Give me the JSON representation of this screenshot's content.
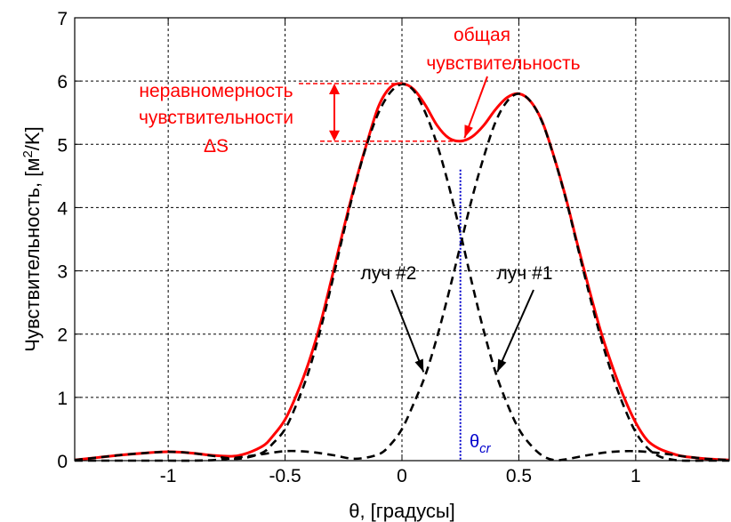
{
  "chart_data": {
    "type": "line",
    "xlabel": "θ, [градусы]",
    "ylabel_main": "Чувствительность, [м",
    "ylabel_sup": "2",
    "ylabel_tail": "/K]",
    "xlim": [
      -1.4,
      1.4
    ],
    "ylim": [
      0,
      7
    ],
    "x_ticks": [
      -1,
      -0.5,
      0,
      0.5,
      1
    ],
    "x_tick_labels": [
      "-1",
      "-0.5",
      "0",
      "0.5",
      "1"
    ],
    "y_ticks": [
      0,
      1,
      2,
      3,
      4,
      5,
      6,
      7
    ],
    "y_tick_labels": [
      "0",
      "1",
      "2",
      "3",
      "4",
      "5",
      "6",
      "7"
    ],
    "grid": true,
    "series": [
      {
        "label": "луч #2",
        "color": "#000000",
        "style": "dashed",
        "points": [
          [
            -1.4,
            0.01
          ],
          [
            -1.3,
            0.05
          ],
          [
            -1.2,
            0.09
          ],
          [
            -1.1,
            0.12
          ],
          [
            -1.0,
            0.14
          ],
          [
            -0.9,
            0.12
          ],
          [
            -0.8,
            0.07
          ],
          [
            -0.7,
            0.03
          ],
          [
            -0.6,
            0.12
          ],
          [
            -0.55,
            0.28
          ],
          [
            -0.5,
            0.5
          ],
          [
            -0.45,
            0.9
          ],
          [
            -0.4,
            1.4
          ],
          [
            -0.35,
            2.05
          ],
          [
            -0.3,
            2.8
          ],
          [
            -0.25,
            3.6
          ],
          [
            -0.2,
            4.35
          ],
          [
            -0.15,
            5.0
          ],
          [
            -0.1,
            5.5
          ],
          [
            -0.05,
            5.82
          ],
          [
            0.0,
            5.95
          ],
          [
            0.05,
            5.85
          ],
          [
            0.1,
            5.5
          ],
          [
            0.15,
            5.0
          ],
          [
            0.2,
            4.35
          ],
          [
            0.25,
            3.6
          ],
          [
            0.3,
            2.8
          ],
          [
            0.35,
            2.05
          ],
          [
            0.4,
            1.4
          ],
          [
            0.45,
            0.9
          ],
          [
            0.5,
            0.5
          ],
          [
            0.55,
            0.25
          ],
          [
            0.6,
            0.08
          ],
          [
            0.65,
            0.01
          ],
          [
            0.7,
            0.02
          ],
          [
            0.8,
            0.09
          ],
          [
            0.9,
            0.14
          ],
          [
            1.0,
            0.15
          ],
          [
            1.1,
            0.12
          ],
          [
            1.2,
            0.07
          ],
          [
            1.3,
            0.03
          ],
          [
            1.4,
            0.01
          ]
        ]
      },
      {
        "label": "луч #1",
        "color": "#000000",
        "style": "dashed",
        "points": [
          [
            -1.4,
            0.0
          ],
          [
            -1.3,
            0.0
          ],
          [
            -1.2,
            0.0
          ],
          [
            -1.1,
            0.0
          ],
          [
            -1.0,
            0.0
          ],
          [
            -0.9,
            0.0
          ],
          [
            -0.8,
            0.01
          ],
          [
            -0.7,
            0.05
          ],
          [
            -0.6,
            0.1
          ],
          [
            -0.5,
            0.15
          ],
          [
            -0.4,
            0.14
          ],
          [
            -0.3,
            0.09
          ],
          [
            -0.2,
            0.03
          ],
          [
            -0.1,
            0.1
          ],
          [
            -0.05,
            0.25
          ],
          [
            0.0,
            0.5
          ],
          [
            0.05,
            0.9
          ],
          [
            0.1,
            1.35
          ],
          [
            0.15,
            1.95
          ],
          [
            0.2,
            2.65
          ],
          [
            0.25,
            3.4
          ],
          [
            0.3,
            4.15
          ],
          [
            0.35,
            4.8
          ],
          [
            0.4,
            5.35
          ],
          [
            0.45,
            5.68
          ],
          [
            0.5,
            5.8
          ],
          [
            0.55,
            5.68
          ],
          [
            0.6,
            5.35
          ],
          [
            0.65,
            4.8
          ],
          [
            0.7,
            4.15
          ],
          [
            0.75,
            3.4
          ],
          [
            0.8,
            2.65
          ],
          [
            0.85,
            1.95
          ],
          [
            0.9,
            1.35
          ],
          [
            0.95,
            0.85
          ],
          [
            1.0,
            0.45
          ],
          [
            1.05,
            0.2
          ],
          [
            1.1,
            0.07
          ],
          [
            1.15,
            0.02
          ],
          [
            1.2,
            0.0
          ],
          [
            1.3,
            0.0
          ],
          [
            1.4,
            0.0
          ]
        ]
      },
      {
        "label": "общая чувствительность",
        "color": "#ff0000",
        "style": "solid",
        "points": [
          [
            -1.4,
            0.01
          ],
          [
            -1.3,
            0.05
          ],
          [
            -1.2,
            0.09
          ],
          [
            -1.1,
            0.12
          ],
          [
            -1.0,
            0.14
          ],
          [
            -0.9,
            0.12
          ],
          [
            -0.8,
            0.08
          ],
          [
            -0.7,
            0.08
          ],
          [
            -0.6,
            0.22
          ],
          [
            -0.55,
            0.4
          ],
          [
            -0.5,
            0.65
          ],
          [
            -0.45,
            1.05
          ],
          [
            -0.4,
            1.54
          ],
          [
            -0.35,
            2.15
          ],
          [
            -0.3,
            2.89
          ],
          [
            -0.25,
            3.66
          ],
          [
            -0.2,
            4.38
          ],
          [
            -0.15,
            5.02
          ],
          [
            -0.1,
            5.6
          ],
          [
            -0.05,
            5.9
          ],
          [
            0.0,
            5.96
          ],
          [
            0.05,
            5.87
          ],
          [
            0.1,
            5.62
          ],
          [
            0.15,
            5.3
          ],
          [
            0.2,
            5.1
          ],
          [
            0.25,
            5.05
          ],
          [
            0.3,
            5.12
          ],
          [
            0.35,
            5.3
          ],
          [
            0.4,
            5.55
          ],
          [
            0.45,
            5.74
          ],
          [
            0.5,
            5.8
          ],
          [
            0.55,
            5.68
          ],
          [
            0.6,
            5.36
          ],
          [
            0.65,
            4.81
          ],
          [
            0.7,
            4.17
          ],
          [
            0.75,
            3.43
          ],
          [
            0.8,
            2.72
          ],
          [
            0.85,
            2.05
          ],
          [
            0.9,
            1.49
          ],
          [
            0.95,
            1.0
          ],
          [
            1.0,
            0.6
          ],
          [
            1.05,
            0.32
          ],
          [
            1.1,
            0.19
          ],
          [
            1.15,
            0.12
          ],
          [
            1.2,
            0.07
          ],
          [
            1.3,
            0.03
          ],
          [
            1.4,
            0.01
          ]
        ]
      }
    ],
    "crossing_line": {
      "x": 0.25,
      "y_top": 4.6,
      "color": "#0000cc",
      "label_main": "θ",
      "label_sub": "cr"
    },
    "annotations": {
      "total": {
        "line1": "общая",
        "line2": "чувствительность",
        "color": "#ff0000"
      },
      "ripple": {
        "line1": "неравномерность",
        "line2": "чувствительности",
        "line3": "ΔS",
        "color": "#ff0000",
        "y_top": 5.96,
        "y_bottom": 5.05
      },
      "beam2": {
        "text": "луч #2",
        "color": "#000000",
        "tip_x": 0.1,
        "tip_y": 1.4
      },
      "beam1": {
        "text": "луч #1",
        "color": "#000000",
        "tip_x": 0.4,
        "tip_y": 1.4
      }
    }
  }
}
